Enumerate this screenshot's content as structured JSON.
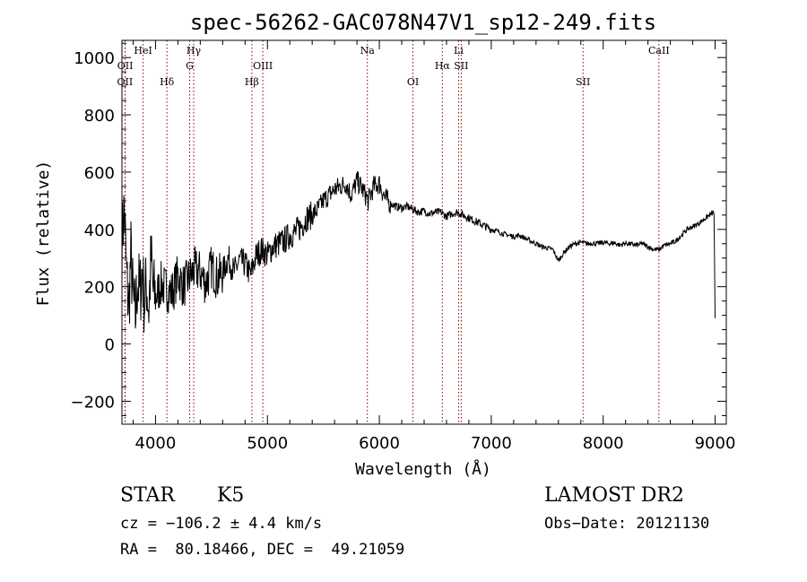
{
  "chart_data": {
    "type": "line",
    "title": "spec-56262-GAC078N47V1_sp12-249.fits",
    "xlabel": "Wavelength (Å)",
    "ylabel": "Flux (relative)",
    "xlim": [
      3700,
      9100
    ],
    "ylim": [
      -280,
      1060
    ],
    "xticks": [
      4000,
      5000,
      6000,
      7000,
      8000,
      9000
    ],
    "xtick_labels": [
      "4000",
      "5000",
      "6000",
      "7000",
      "8000",
      "9000"
    ],
    "yticks": [
      -200,
      0,
      200,
      400,
      600,
      800,
      1000
    ],
    "ytick_labels": [
      "−200",
      "0",
      "200",
      "400",
      "600",
      "800",
      "1000"
    ],
    "grid": false,
    "line_color": "#000000",
    "marker_color": "#8b0000",
    "series": [
      {
        "x": [
          3700,
          3720,
          3740,
          3760,
          3780,
          3800,
          3820,
          3840,
          3860,
          3880,
          3900,
          3920,
          3940,
          3960,
          3980,
          4000,
          4050,
          4100,
          4150,
          4200,
          4250,
          4300,
          4350,
          4400,
          4450,
          4500,
          4550,
          4600,
          4650,
          4700,
          4750,
          4800,
          4850,
          4900,
          4950,
          5000,
          5050,
          5100,
          5150,
          5200,
          5250,
          5300,
          5350,
          5400,
          5450,
          5500,
          5550,
          5600,
          5650,
          5700,
          5750,
          5800,
          5850,
          5900,
          5950,
          6000,
          6050,
          6100,
          6150,
          6200,
          6250,
          6300,
          6350,
          6400,
          6450,
          6500,
          6550,
          6600,
          6650,
          6700,
          6750,
          6800,
          6850,
          6900,
          6950,
          7000,
          7050,
          7100,
          7150,
          7200,
          7250,
          7300,
          7350,
          7400,
          7450,
          7500,
          7550,
          7600,
          7650,
          7700,
          7750,
          7800,
          7850,
          7900,
          7950,
          8000,
          8050,
          8100,
          8150,
          8200,
          8250,
          8300,
          8350,
          8400,
          8450,
          8500,
          8550,
          8600,
          8650,
          8700,
          8750,
          8800,
          8850,
          8900,
          8950,
          8990,
          9000
        ],
        "y": [
          350,
          480,
          250,
          120,
          310,
          150,
          90,
          230,
          170,
          260,
          140,
          210,
          120,
          300,
          180,
          160,
          210,
          190,
          180,
          240,
          200,
          230,
          260,
          250,
          210,
          270,
          230,
          250,
          300,
          250,
          290,
          280,
          240,
          310,
          330,
          310,
          340,
          350,
          360,
          380,
          390,
          410,
          440,
          450,
          470,
          500,
          520,
          540,
          550,
          560,
          520,
          570,
          540,
          500,
          550,
          560,
          510,
          490,
          480,
          475,
          480,
          470,
          460,
          465,
          455,
          460,
          460,
          445,
          455,
          460,
          450,
          440,
          430,
          420,
          410,
          400,
          395,
          385,
          380,
          375,
          380,
          370,
          360,
          350,
          340,
          335,
          330,
          290,
          320,
          340,
          350,
          355,
          350,
          352,
          350,
          355,
          350,
          353,
          345,
          352,
          348,
          345,
          350,
          340,
          330,
          330,
          345,
          350,
          360,
          380,
          400,
          410,
          420,
          435,
          450,
          460,
          90
        ]
      }
    ],
    "line_markers": [
      {
        "label": "OII",
        "x": 3727,
        "row": 2
      },
      {
        "label": "OII",
        "x": 3729,
        "row": 1
      },
      {
        "label": "HeI",
        "x": 3889,
        "row": 0
      },
      {
        "label": "Hδ",
        "x": 4102,
        "row": 2
      },
      {
        "label": "Hγ",
        "x": 4341,
        "row": 0
      },
      {
        "label": "G",
        "x": 4305,
        "row": 1
      },
      {
        "label": "Hβ",
        "x": 4861,
        "row": 2
      },
      {
        "label": "OIII",
        "x": 4959,
        "row": 1
      },
      {
        "label": "Na",
        "x": 5893,
        "row": 0
      },
      {
        "label": "OI",
        "x": 6300,
        "row": 2
      },
      {
        "label": "Hα",
        "x": 6563,
        "row": 1
      },
      {
        "label": "Li",
        "x": 6708,
        "row": 0
      },
      {
        "label": "SII",
        "x": 6731,
        "row": 1
      },
      {
        "label": "SII",
        "x": 7820,
        "row": 2
      },
      {
        "label": "CaII",
        "x": 8498,
        "row": 0
      }
    ]
  },
  "info": {
    "class": "STAR",
    "subclass": "K5",
    "survey": "LAMOST DR2",
    "cz": "cz = −106.2 ± 4.4 km/s",
    "obs_date": "Obs−Date: 20121130",
    "coords": "RA =  80.18466, DEC =  49.21059"
  }
}
